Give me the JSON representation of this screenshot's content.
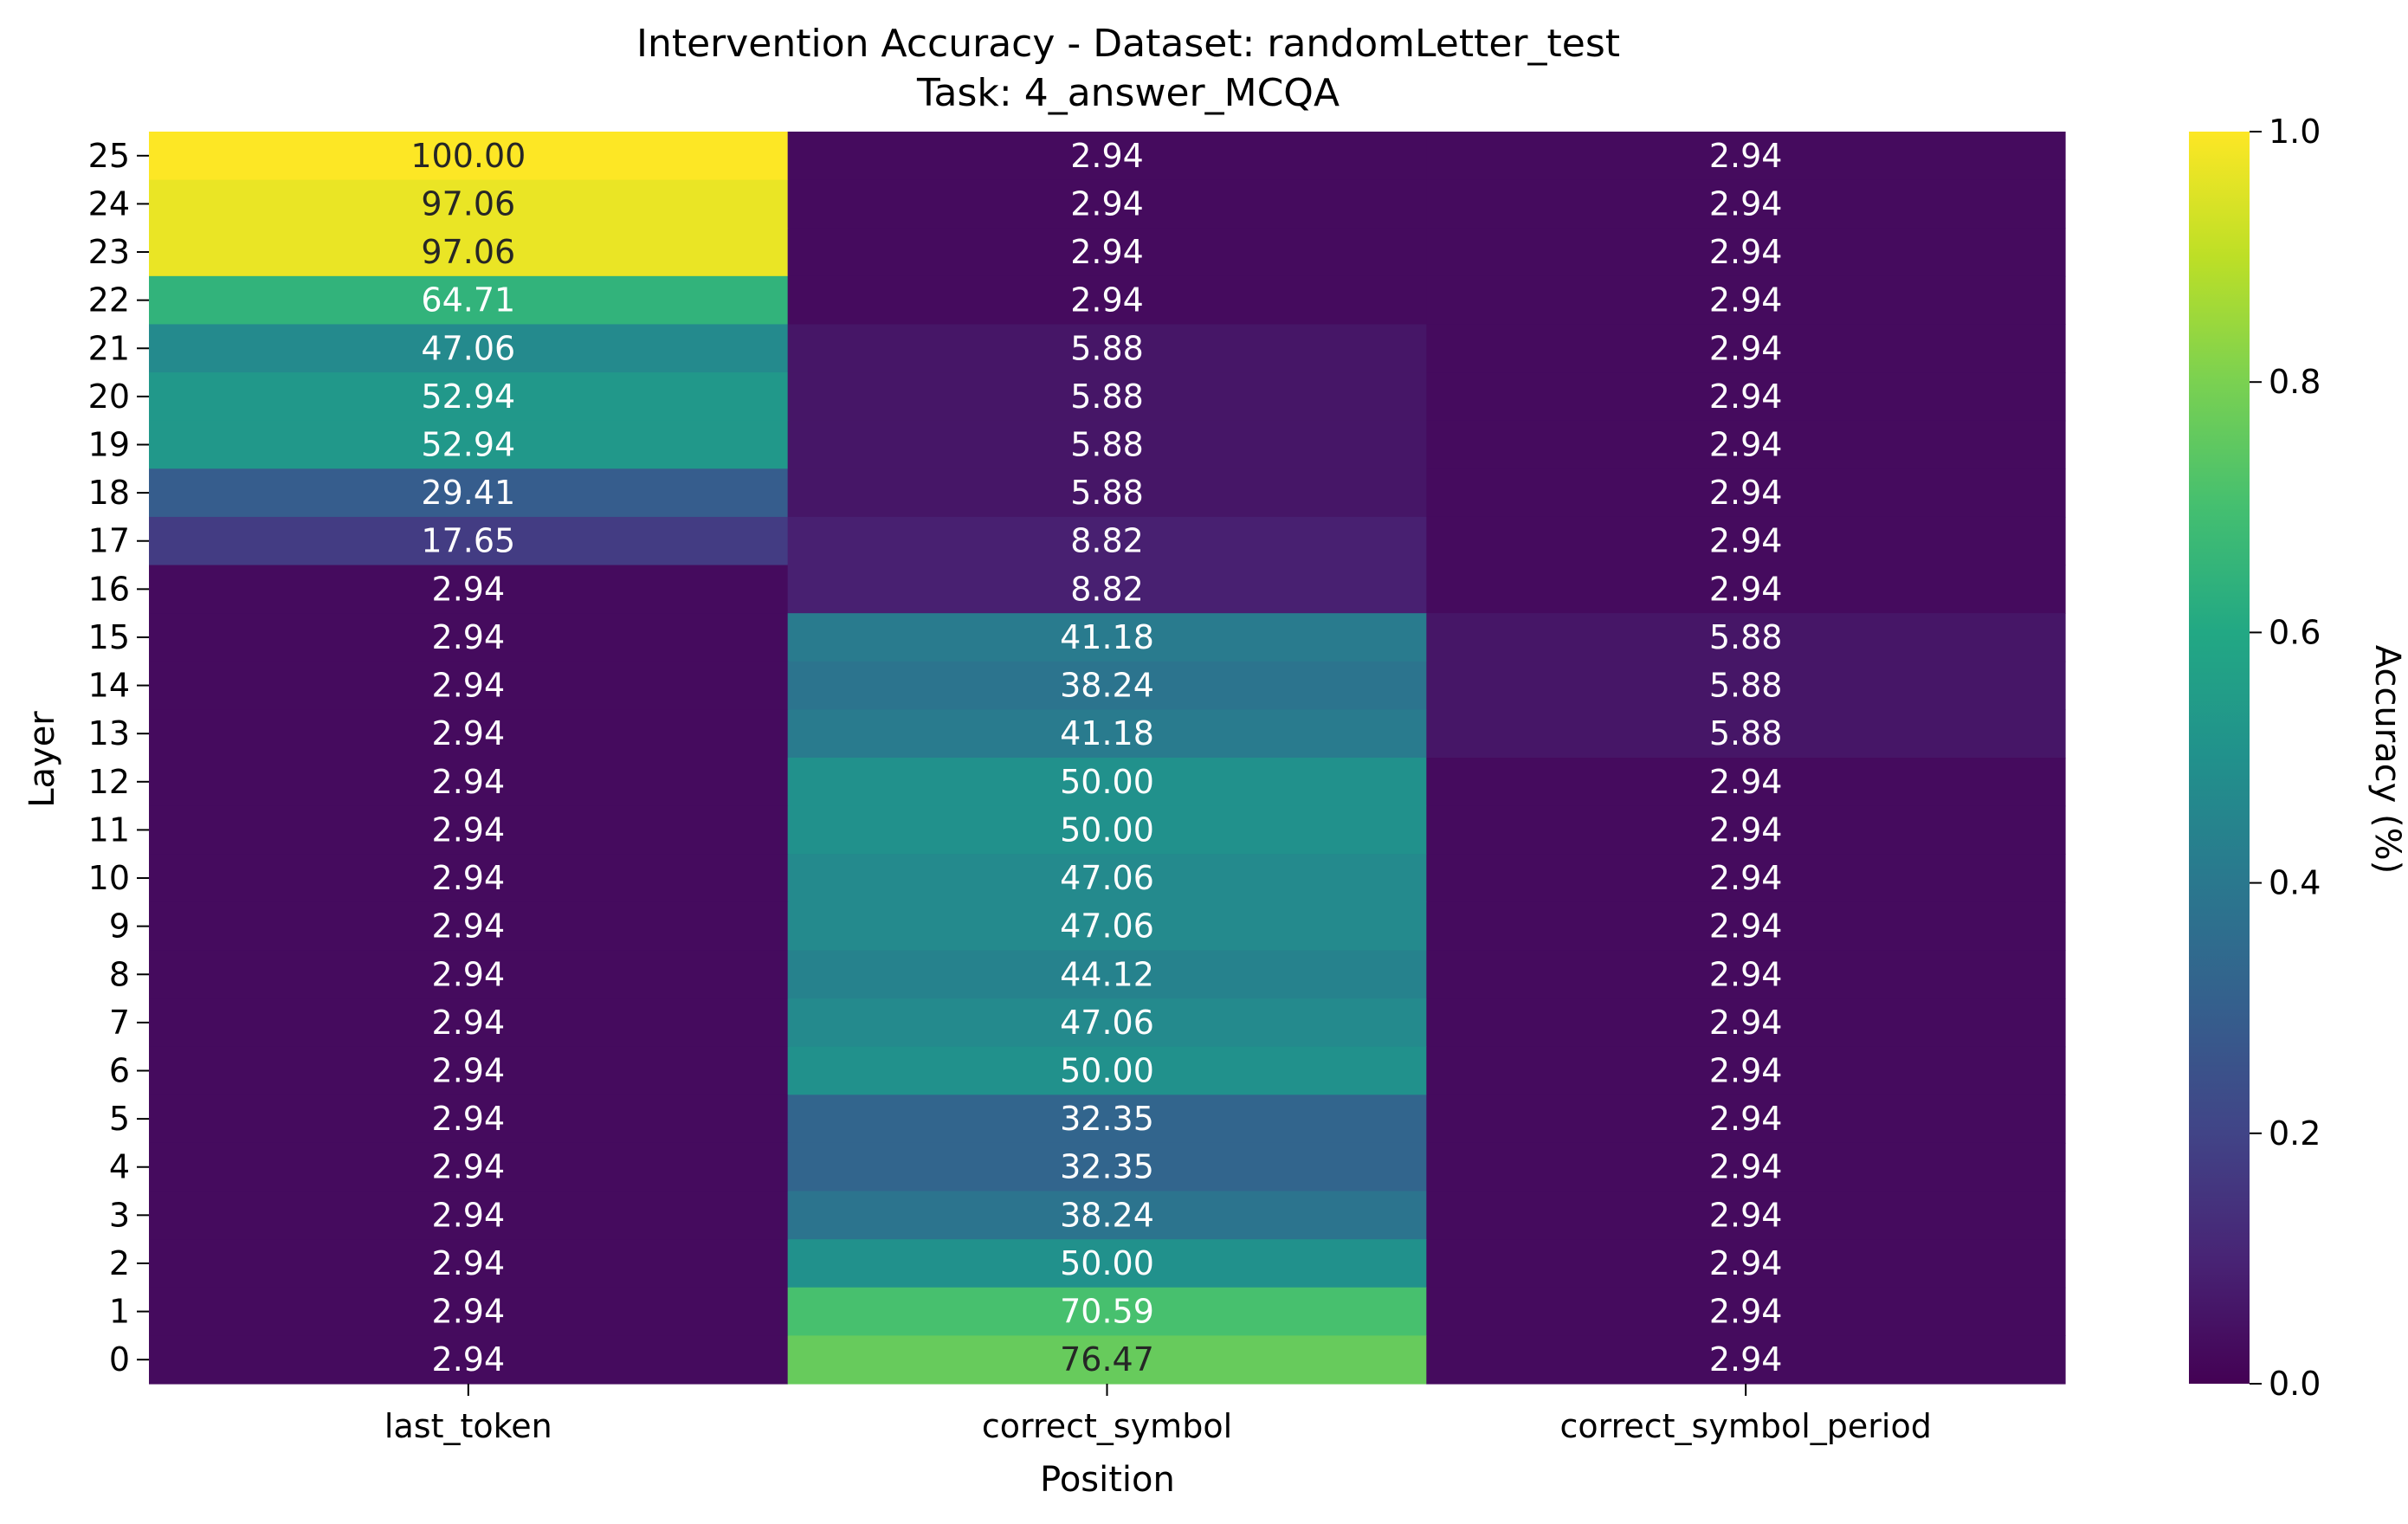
{
  "chart_data": {
    "type": "heatmap",
    "title": "Intervention Accuracy - Dataset: randomLetter_test",
    "subtitle": "Task: 4_answer_MCQA",
    "xlabel": "Position",
    "ylabel": "Layer",
    "colormap": "viridis",
    "columns": [
      "last_token",
      "correct_symbol",
      "correct_symbol_period"
    ],
    "rows": [
      "25",
      "24",
      "23",
      "22",
      "21",
      "20",
      "19",
      "18",
      "17",
      "16",
      "15",
      "14",
      "13",
      "12",
      "11",
      "10",
      "9",
      "8",
      "7",
      "6",
      "5",
      "4",
      "3",
      "2",
      "1",
      "0"
    ],
    "values": [
      [
        100.0,
        2.94,
        2.94
      ],
      [
        97.06,
        2.94,
        2.94
      ],
      [
        97.06,
        2.94,
        2.94
      ],
      [
        64.71,
        2.94,
        2.94
      ],
      [
        47.06,
        5.88,
        2.94
      ],
      [
        52.94,
        5.88,
        2.94
      ],
      [
        52.94,
        5.88,
        2.94
      ],
      [
        29.41,
        5.88,
        2.94
      ],
      [
        17.65,
        8.82,
        2.94
      ],
      [
        2.94,
        8.82,
        2.94
      ],
      [
        2.94,
        41.18,
        5.88
      ],
      [
        2.94,
        38.24,
        5.88
      ],
      [
        2.94,
        41.18,
        5.88
      ],
      [
        2.94,
        50.0,
        2.94
      ],
      [
        2.94,
        50.0,
        2.94
      ],
      [
        2.94,
        47.06,
        2.94
      ],
      [
        2.94,
        47.06,
        2.94
      ],
      [
        2.94,
        44.12,
        2.94
      ],
      [
        2.94,
        47.06,
        2.94
      ],
      [
        2.94,
        50.0,
        2.94
      ],
      [
        2.94,
        32.35,
        2.94
      ],
      [
        2.94,
        32.35,
        2.94
      ],
      [
        2.94,
        38.24,
        2.94
      ],
      [
        2.94,
        50.0,
        2.94
      ],
      [
        2.94,
        70.59,
        2.94
      ],
      [
        2.94,
        76.47,
        2.94
      ]
    ],
    "value_format": "2 decimals",
    "colorbar": {
      "label": "Accuracy (%)",
      "range": [
        0.0,
        1.0
      ],
      "ticks": [
        "0.0",
        "0.2",
        "0.4",
        "0.6",
        "0.8",
        "1.0"
      ]
    },
    "grid": false,
    "legend": "colorbar-right"
  }
}
